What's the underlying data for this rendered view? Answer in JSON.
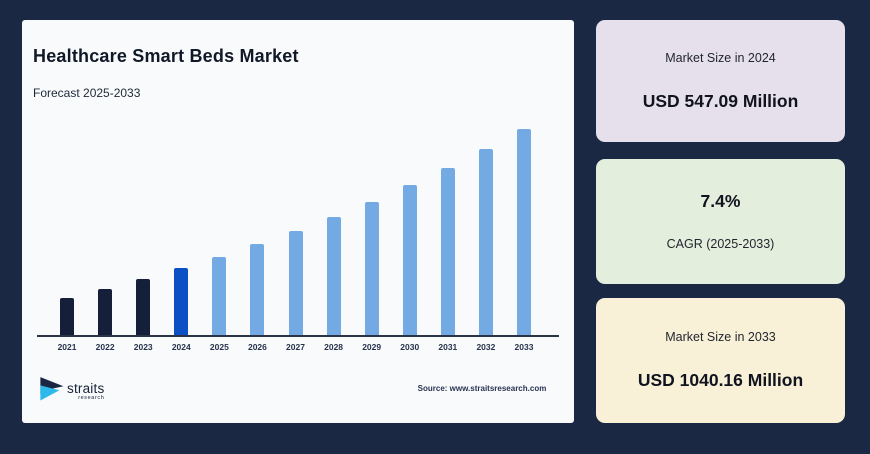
{
  "page": {
    "background": "#1b2843"
  },
  "chart_card": {
    "title": "Healthcare Smart Beds Market",
    "subtitle": "Forecast 2025-2033",
    "source": "Source: www.straitsresearch.com",
    "logo": {
      "brand": "straits",
      "sub": "research"
    },
    "colors": {
      "card_bg": "#f8fafc",
      "axis": "#2b3445",
      "logo_dark": "#1b2642",
      "logo_cyan": "#2fb9ea"
    }
  },
  "chart_data": {
    "type": "bar",
    "title": "Healthcare Smart Beds Market",
    "unit": "USD Million",
    "xlabel": "",
    "ylabel": "",
    "categories": [
      "2021",
      "2022",
      "2023",
      "2024",
      "2025",
      "2026",
      "2027",
      "2028",
      "2029",
      "2030",
      "2031",
      "2032",
      "2033"
    ],
    "values": [
      441.56,
      474.24,
      509.33,
      547.09,
      587.57,
      631.05,
      677.75,
      727.9,
      781.77,
      839.62,
      901.75,
      968.48,
      1040.16
    ],
    "segments": [
      "historical",
      "historical",
      "historical",
      "base_year",
      "forecast",
      "forecast",
      "forecast",
      "forecast",
      "forecast",
      "forecast",
      "forecast",
      "forecast",
      "forecast"
    ],
    "segment_colors": {
      "historical": "#151f3a",
      "base_year": "#0b50c5",
      "forecast": "#73aae3"
    },
    "anchor_values": {
      "2024": 547.09,
      "2033": 1040.16
    },
    "cagr_percent": 7.4,
    "ylim": [
      310,
      1060
    ],
    "grid": false,
    "legend": false
  },
  "stat_cards": [
    {
      "id": "market-size-2024",
      "bg": "#e5e0eb",
      "rows": [
        {
          "kind": "label",
          "text": "Market Size in 2024"
        },
        {
          "kind": "value",
          "text": "USD 547.09 Million"
        }
      ]
    },
    {
      "id": "cagr",
      "bg": "#e3eedd",
      "rows": [
        {
          "kind": "value",
          "text": "7.4%"
        },
        {
          "kind": "label",
          "text": "CAGR (2025-2033)"
        }
      ]
    },
    {
      "id": "market-size-2033",
      "bg": "#f9f1d7",
      "rows": [
        {
          "kind": "label",
          "text": "Market Size in 2033"
        },
        {
          "kind": "value",
          "text": "USD 1040.16 Million"
        }
      ]
    }
  ]
}
